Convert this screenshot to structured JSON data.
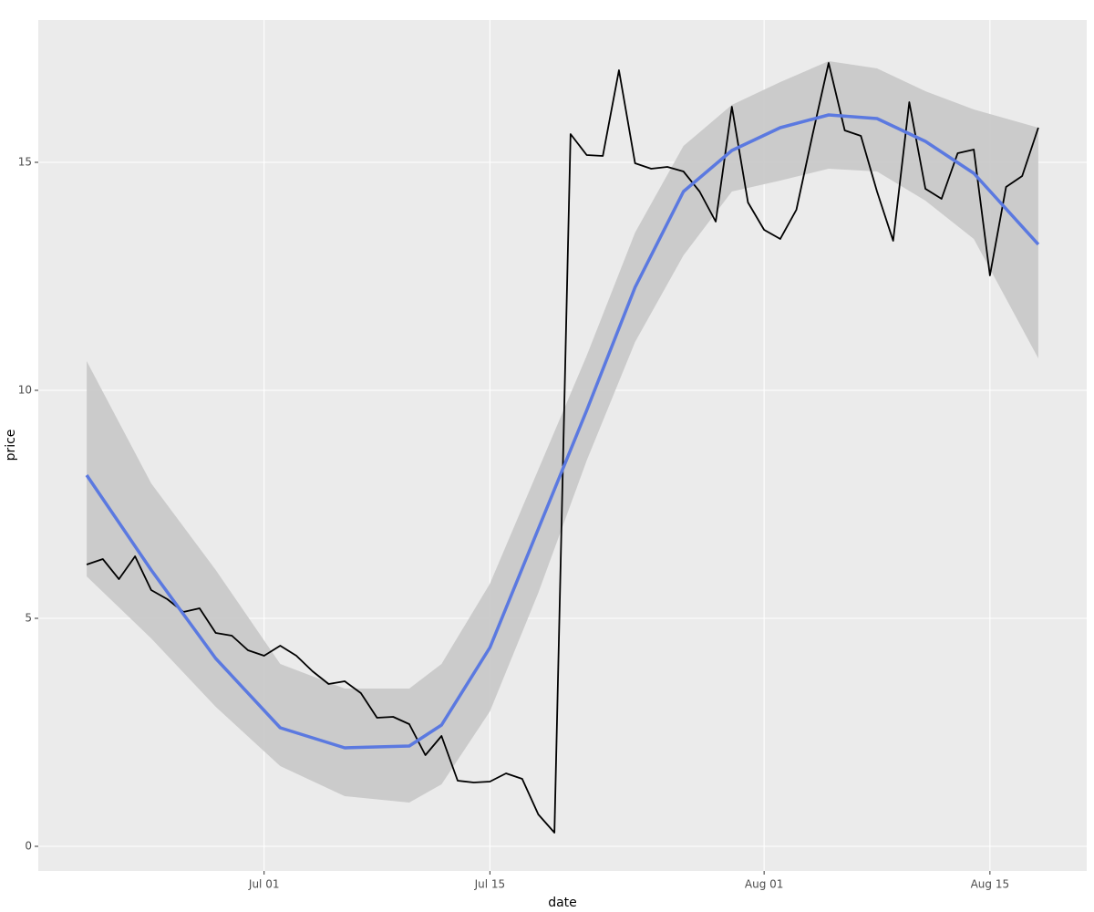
{
  "chart_data": {
    "type": "line",
    "x_label": "date",
    "y_label": "price",
    "xlim": [
      "Jun 17",
      "Aug 21"
    ],
    "xticks": [
      "Jul 01",
      "Jul 15",
      "Aug 01",
      "Aug 15"
    ],
    "ylim": [
      -0.54,
      18.12
    ],
    "yticks": [
      0,
      5,
      10,
      15
    ],
    "grid": true,
    "series": [
      {
        "color": "#000000",
        "x": [
          "Jun 20",
          "Jun 21",
          "Jun 22",
          "Jun 23",
          "Jun 24",
          "Jun 25",
          "Jun 26",
          "Jun 27",
          "Jun 28",
          "Jun 29",
          "Jun 30",
          "Jul 01",
          "Jul 02",
          "Jul 03",
          "Jul 04",
          "Jul 05",
          "Jul 06",
          "Jul 07",
          "Jul 08",
          "Jul 09",
          "Jul 10",
          "Jul 11",
          "Jul 12",
          "Jul 13",
          "Jul 14",
          "Jul 15",
          "Jul 16",
          "Jul 17",
          "Jul 18",
          "Jul 19",
          "Jul 20",
          "Jul 21",
          "Jul 22",
          "Jul 23",
          "Jul 24",
          "Jul 25",
          "Jul 26",
          "Jul 27",
          "Jul 28",
          "Jul 29",
          "Jul 30",
          "Jul 31",
          "Aug 01",
          "Aug 02",
          "Aug 03",
          "Aug 04",
          "Aug 05",
          "Aug 06",
          "Aug 07",
          "Aug 08",
          "Aug 09",
          "Aug 10",
          "Aug 11",
          "Aug 12",
          "Aug 13",
          "Aug 14",
          "Aug 15",
          "Aug 16",
          "Aug 17",
          "Aug 18"
        ],
        "values": [
          6.18,
          6.3,
          5.86,
          6.36,
          5.62,
          5.42,
          5.14,
          5.22,
          4.68,
          4.62,
          4.3,
          4.18,
          4.4,
          4.18,
          3.84,
          3.56,
          3.62,
          3.36,
          2.82,
          2.84,
          2.68,
          2.0,
          2.42,
          1.44,
          1.4,
          1.42,
          1.6,
          1.48,
          0.7,
          0.3,
          15.62,
          15.16,
          15.14,
          17.02,
          14.98,
          14.86,
          14.9,
          14.8,
          14.36,
          13.7,
          16.22,
          14.12,
          13.52,
          13.32,
          13.96,
          15.6,
          17.18,
          15.7,
          15.58,
          14.36,
          13.28,
          16.32,
          14.42,
          14.2,
          15.2,
          15.28,
          12.52,
          14.46,
          14.7,
          15.76
        ]
      },
      {
        "color": "#5b79e0",
        "band_color": "#c8c8c8",
        "x": [
          "Jun 20",
          "Jun 24",
          "Jun 28",
          "Jul 02",
          "Jul 06",
          "Jul 10",
          "Jul 12",
          "Jul 15",
          "Jul 18",
          "Jul 21",
          "Jul 24",
          "Jul 27",
          "Jul 30",
          "Aug 02",
          "Aug 05",
          "Aug 08",
          "Aug 11",
          "Aug 14",
          "Aug 18"
        ],
        "values": [
          8.14,
          6.06,
          4.12,
          2.6,
          2.16,
          2.2,
          2.66,
          4.36,
          6.96,
          9.56,
          12.26,
          14.36,
          15.26,
          15.76,
          16.04,
          15.96,
          15.46,
          14.76,
          13.2
        ],
        "lower": [
          5.92,
          4.56,
          3.06,
          1.76,
          1.1,
          0.96,
          1.36,
          2.96,
          5.56,
          8.46,
          11.06,
          12.96,
          14.36,
          14.6,
          14.86,
          14.8,
          14.16,
          13.32,
          10.7
        ],
        "upper": [
          10.64,
          7.96,
          6.06,
          4.0,
          3.46,
          3.46,
          4.0,
          5.76,
          8.26,
          10.76,
          13.46,
          15.36,
          16.26,
          16.76,
          17.22,
          17.06,
          16.56,
          16.16,
          15.76
        ]
      }
    ]
  }
}
